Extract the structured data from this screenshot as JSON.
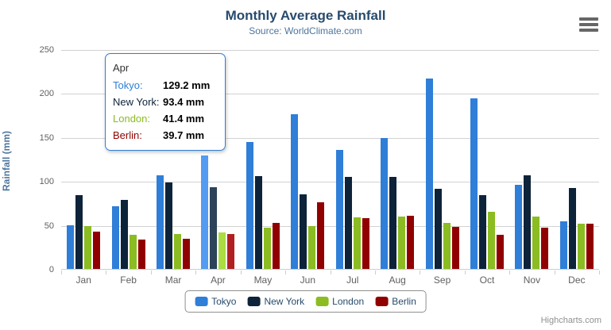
{
  "header": {
    "title": "Monthly Average Rainfall",
    "subtitle": "Source: WorldClimate.com"
  },
  "y_axis": {
    "title": "Rainfall (mm)"
  },
  "credits": {
    "label": "Highcharts.com"
  },
  "icons": {
    "export_menu": "hamburger-icon"
  },
  "chart_data": {
    "type": "bar",
    "title": "Monthly Average Rainfall",
    "subtitle": "Source: WorldClimate.com",
    "xlabel": "",
    "ylabel": "Rainfall (mm)",
    "ylim": [
      0,
      250
    ],
    "y_ticks": [
      0,
      50,
      100,
      150,
      200,
      250
    ],
    "grid": true,
    "legend_position": "bottom",
    "hovered_category": "Apr",
    "categories": [
      "Jan",
      "Feb",
      "Mar",
      "Apr",
      "May",
      "Jun",
      "Jul",
      "Aug",
      "Sep",
      "Oct",
      "Nov",
      "Dec"
    ],
    "series": [
      {
        "name": "Tokyo",
        "color": "#2f7ed8",
        "hover_color": "#549bf2",
        "values": [
          49.9,
          71.5,
          106.4,
          129.2,
          144.0,
          176.0,
          135.6,
          148.5,
          216.4,
          194.1,
          95.6,
          54.4
        ]
      },
      {
        "name": "New York",
        "color": "#0d233a",
        "hover_color": "#2d435a",
        "values": [
          83.6,
          78.8,
          98.5,
          93.4,
          106.0,
          84.5,
          105.0,
          104.3,
          91.2,
          83.5,
          106.6,
          92.3
        ]
      },
      {
        "name": "London",
        "color": "#8bbc21",
        "hover_color": "#abdc41",
        "values": [
          48.9,
          38.8,
          39.3,
          41.4,
          47.0,
          48.3,
          59.0,
          59.6,
          52.4,
          65.2,
          59.3,
          51.2
        ]
      },
      {
        "name": "Berlin",
        "color": "#910000",
        "hover_color": "#b12020",
        "values": [
          42.4,
          33.2,
          34.5,
          39.7,
          52.6,
          75.5,
          57.4,
          60.4,
          47.6,
          39.1,
          46.8,
          51.1
        ]
      }
    ]
  },
  "tooltip": {
    "header": "Apr",
    "rows": [
      {
        "name": "Tokyo:",
        "value": "129.2 mm"
      },
      {
        "name": "New York:",
        "value": "93.4 mm"
      },
      {
        "name": "London:",
        "value": "41.4 mm"
      },
      {
        "name": "Berlin:",
        "value": "39.7 mm"
      }
    ]
  },
  "legend": {
    "items": [
      "Tokyo",
      "New York",
      "London",
      "Berlin"
    ]
  }
}
